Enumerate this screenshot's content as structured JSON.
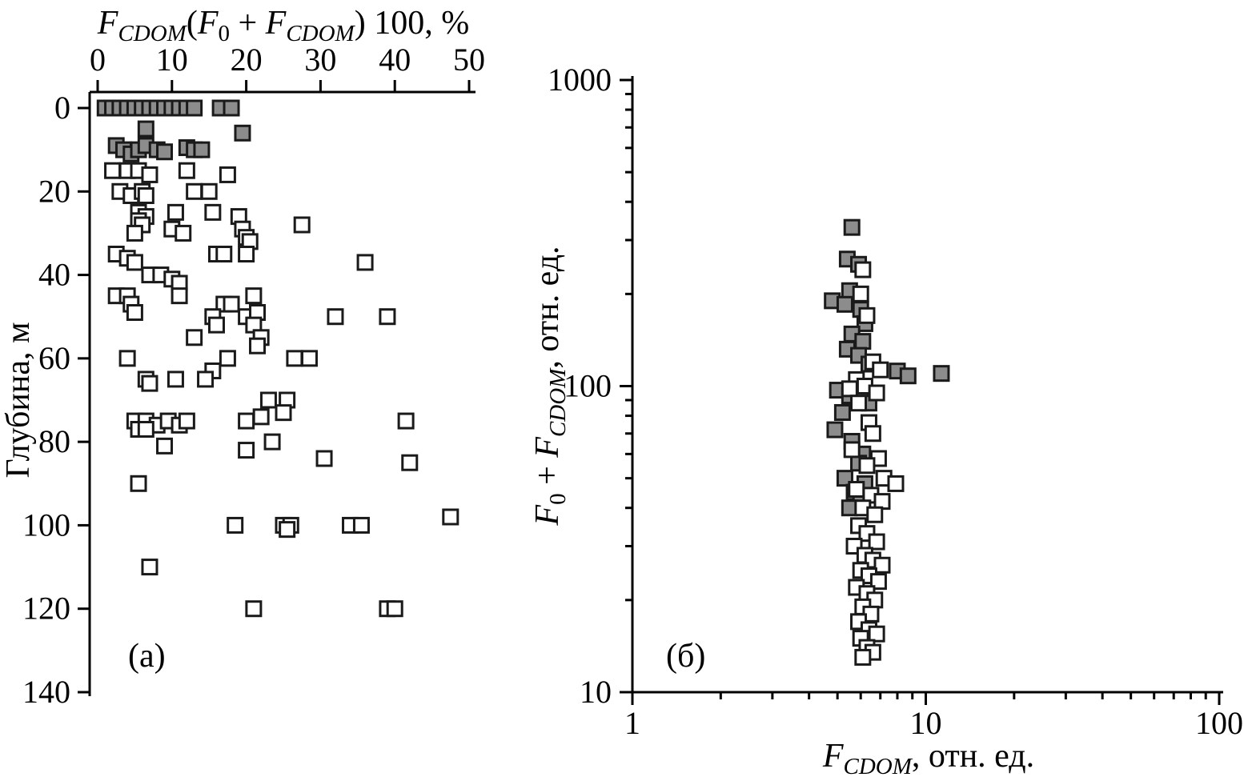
{
  "figure": {
    "background": "#ffffff",
    "marker": {
      "size": 18,
      "stroke": "#1a1a1a",
      "stroke_width": 3
    },
    "colors": {
      "gray_fill": "#8c8c8c",
      "white_fill": "#ffffff",
      "axis": "#000000"
    }
  },
  "chart_data": [
    {
      "id": "panel_a",
      "type": "scatter",
      "panel_label": "(а)",
      "x_axis": {
        "title_segments": [
          {
            "t": "F",
            "s": "i"
          },
          {
            "t": "CDOM",
            "s": "isub"
          },
          {
            "t": "(",
            "s": "n"
          },
          {
            "t": "F",
            "s": "i"
          },
          {
            "t": "0",
            "s": "sub"
          },
          {
            "t": " + ",
            "s": "n"
          },
          {
            "t": "F",
            "s": "i"
          },
          {
            "t": "CDOM",
            "s": "isub"
          },
          {
            "t": ") 100, %",
            "s": "n"
          }
        ],
        "ticks": [
          0,
          10,
          20,
          30,
          40,
          50
        ],
        "range": [
          0,
          50
        ],
        "scale": "linear",
        "position": "top"
      },
      "y_axis": {
        "title_segments": [
          {
            "t": "Глубина, м",
            "s": "n"
          }
        ],
        "ticks": [
          0,
          20,
          40,
          60,
          80,
          100,
          120,
          140
        ],
        "range": [
          0,
          140
        ],
        "scale": "linear",
        "inverted": true
      },
      "series": [
        {
          "name": "surface-gray-squares",
          "fill": "gray",
          "points": [
            [
              1,
              0
            ],
            [
              2,
              0
            ],
            [
              3,
              0
            ],
            [
              4,
              0
            ],
            [
              5,
              0
            ],
            [
              6,
              0
            ],
            [
              7,
              0
            ],
            [
              8,
              0
            ],
            [
              9,
              0
            ],
            [
              10,
              0
            ],
            [
              11,
              0
            ],
            [
              12,
              0
            ],
            [
              13,
              0
            ],
            [
              16.5,
              0
            ],
            [
              18,
              0
            ],
            [
              6.5,
              5
            ],
            [
              19.5,
              6
            ],
            [
              2.5,
              9
            ],
            [
              3.5,
              10
            ],
            [
              4.5,
              11
            ],
            [
              5.5,
              10
            ],
            [
              6.5,
              9
            ],
            [
              8,
              10
            ],
            [
              9,
              10.5
            ],
            [
              12,
              9.5
            ],
            [
              13,
              10
            ],
            [
              14,
              10
            ]
          ]
        },
        {
          "name": "deep-white-squares",
          "fill": "white",
          "points": [
            [
              2,
              15
            ],
            [
              4,
              15
            ],
            [
              5.5,
              15
            ],
            [
              7,
              16
            ],
            [
              12,
              15
            ],
            [
              17.5,
              16
            ],
            [
              3,
              20
            ],
            [
              4.5,
              21
            ],
            [
              6,
              20
            ],
            [
              6.5,
              21
            ],
            [
              13,
              20
            ],
            [
              15,
              20
            ],
            [
              5.5,
              25
            ],
            [
              6.5,
              26
            ],
            [
              10.5,
              25
            ],
            [
              15.5,
              25
            ],
            [
              19,
              26
            ],
            [
              5.5,
              27
            ],
            [
              6,
              28
            ],
            [
              27.5,
              28
            ],
            [
              5,
              30
            ],
            [
              10,
              29
            ],
            [
              11.5,
              30
            ],
            [
              19.5,
              29
            ],
            [
              20,
              31
            ],
            [
              20.5,
              32
            ],
            [
              2.5,
              35
            ],
            [
              4,
              36
            ],
            [
              16,
              35
            ],
            [
              17,
              35
            ],
            [
              20,
              35
            ],
            [
              5,
              37
            ],
            [
              36,
              37
            ],
            [
              7,
              40
            ],
            [
              8.5,
              40
            ],
            [
              10,
              41
            ],
            [
              11,
              42
            ],
            [
              2.5,
              45
            ],
            [
              4,
              45
            ],
            [
              11,
              45
            ],
            [
              21,
              45
            ],
            [
              4.5,
              47
            ],
            [
              17,
              47
            ],
            [
              18,
              47
            ],
            [
              5,
              49
            ],
            [
              15.5,
              50
            ],
            [
              20,
              50
            ],
            [
              21.5,
              49
            ],
            [
              32,
              50
            ],
            [
              39,
              50
            ],
            [
              16,
              52
            ],
            [
              21,
              52
            ],
            [
              13,
              55
            ],
            [
              22,
              55
            ],
            [
              21.5,
              57
            ],
            [
              4,
              60
            ],
            [
              17.5,
              60
            ],
            [
              26.5,
              60
            ],
            [
              28.5,
              60
            ],
            [
              15.5,
              63
            ],
            [
              6.5,
              65
            ],
            [
              7,
              66
            ],
            [
              10.5,
              65
            ],
            [
              14.5,
              65
            ],
            [
              23,
              70
            ],
            [
              25.5,
              70
            ],
            [
              25,
              73
            ],
            [
              5,
              75
            ],
            [
              6.5,
              75
            ],
            [
              8,
              76
            ],
            [
              9.5,
              75
            ],
            [
              11,
              76
            ],
            [
              12,
              75
            ],
            [
              20,
              75
            ],
            [
              22,
              74
            ],
            [
              41.5,
              75
            ],
            [
              5.5,
              77
            ],
            [
              6.5,
              77
            ],
            [
              9,
              81
            ],
            [
              23.5,
              80
            ],
            [
              20,
              82
            ],
            [
              30.5,
              84
            ],
            [
              42,
              85
            ],
            [
              5.5,
              90
            ],
            [
              47.5,
              98
            ],
            [
              18.5,
              100
            ],
            [
              25,
              100
            ],
            [
              26,
              100
            ],
            [
              25.5,
              101
            ],
            [
              34,
              100
            ],
            [
              35.5,
              100
            ],
            [
              7,
              110
            ],
            [
              21,
              120
            ],
            [
              39,
              120
            ],
            [
              40,
              120
            ]
          ]
        }
      ]
    },
    {
      "id": "panel_b",
      "type": "scatter",
      "panel_label": "(б)",
      "x_axis": {
        "title_segments": [
          {
            "t": "F",
            "s": "i"
          },
          {
            "t": "CDOM",
            "s": "isub"
          },
          {
            "t": ", отн. ед.",
            "s": "n"
          }
        ],
        "ticks": [
          1,
          10,
          100
        ],
        "range": [
          1,
          100
        ],
        "scale": "log",
        "position": "bottom"
      },
      "y_axis": {
        "title_segments": [
          {
            "t": "F",
            "s": "i"
          },
          {
            "t": "0",
            "s": "sub"
          },
          {
            "t": " + ",
            "s": "n"
          },
          {
            "t": "F",
            "s": "i"
          },
          {
            "t": "CDOM",
            "s": "isub"
          },
          {
            "t": ", отн. ед.",
            "s": "n"
          }
        ],
        "ticks": [
          10,
          100,
          1000
        ],
        "range": [
          10,
          1000
        ],
        "scale": "log",
        "inverted": false
      },
      "series": [
        {
          "name": "gray-squares",
          "fill": "gray",
          "points": [
            [
              5.6,
              330
            ],
            [
              5.4,
              260
            ],
            [
              5.9,
              250
            ],
            [
              5.5,
              205
            ],
            [
              4.8,
              190
            ],
            [
              5.3,
              185
            ],
            [
              6.0,
              178
            ],
            [
              6.2,
              160
            ],
            [
              5.6,
              148
            ],
            [
              6.1,
              140
            ],
            [
              5.4,
              132
            ],
            [
              5.9,
              126
            ],
            [
              6.4,
              118
            ],
            [
              8.0,
              112
            ],
            [
              8.7,
              108
            ],
            [
              11.3,
              110
            ],
            [
              5.0,
              97
            ],
            [
              5.5,
              93
            ],
            [
              6.0,
              90
            ],
            [
              6.4,
              88
            ],
            [
              5.2,
              82
            ],
            [
              4.9,
              72
            ],
            [
              5.6,
              66
            ],
            [
              6.1,
              60
            ],
            [
              5.9,
              56
            ],
            [
              5.3,
              50
            ],
            [
              6.2,
              48
            ],
            [
              5.7,
              45
            ],
            [
              6.0,
              43
            ],
            [
              5.5,
              40
            ]
          ]
        },
        {
          "name": "white-squares",
          "fill": "white",
          "points": [
            [
              6.1,
              240
            ],
            [
              6.0,
              200
            ],
            [
              6.3,
              170
            ],
            [
              6.6,
              120
            ],
            [
              7.0,
              113
            ],
            [
              5.8,
              105
            ],
            [
              6.2,
              100
            ],
            [
              5.5,
              98
            ],
            [
              6.8,
              95
            ],
            [
              5.9,
              88
            ],
            [
              6.4,
              76
            ],
            [
              6.6,
              70
            ],
            [
              5.6,
              62
            ],
            [
              6.9,
              58
            ],
            [
              6.3,
              55
            ],
            [
              7.2,
              50
            ],
            [
              7.9,
              48
            ],
            [
              5.8,
              46
            ],
            [
              6.5,
              44
            ],
            [
              7.1,
              42
            ],
            [
              6.1,
              40
            ],
            [
              6.7,
              38
            ],
            [
              5.9,
              35
            ],
            [
              6.3,
              33
            ],
            [
              6.8,
              31
            ],
            [
              5.7,
              30
            ],
            [
              6.2,
              28
            ],
            [
              6.6,
              27
            ],
            [
              7.1,
              26
            ],
            [
              6.0,
              25
            ],
            [
              6.4,
              24
            ],
            [
              6.9,
              23
            ],
            [
              5.8,
              22
            ],
            [
              6.3,
              21
            ],
            [
              6.7,
              20
            ],
            [
              6.1,
              19
            ],
            [
              6.5,
              18
            ],
            [
              5.9,
              17
            ],
            [
              6.4,
              16
            ],
            [
              6.8,
              15.5
            ],
            [
              6.0,
              15
            ],
            [
              6.3,
              14
            ],
            [
              6.6,
              13.5
            ],
            [
              6.1,
              13
            ]
          ]
        }
      ]
    }
  ]
}
